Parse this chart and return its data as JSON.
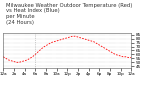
{
  "title": "Milwaukee Weather Outdoor Temperature (Red)\nvs Heat Index (Blue)\nper Minute\n(24 Hours)",
  "line_color": "#ff0000",
  "background_color": "#ffffff",
  "grid_color": "#aaaaaa",
  "yticks": [
    45,
    50,
    55,
    60,
    65,
    70,
    75,
    80,
    85
  ],
  "ylim": [
    43,
    87
  ],
  "xlim": [
    0,
    1440
  ],
  "xlabel": "",
  "ylabel": "",
  "title_fontsize": 3.8,
  "tick_fontsize": 3.0,
  "x_values": [
    0,
    30,
    60,
    90,
    120,
    150,
    180,
    210,
    240,
    270,
    300,
    330,
    360,
    390,
    420,
    450,
    480,
    510,
    540,
    570,
    600,
    630,
    660,
    690,
    720,
    750,
    780,
    810,
    840,
    870,
    900,
    930,
    960,
    990,
    1020,
    1050,
    1080,
    1110,
    1140,
    1170,
    1200,
    1230,
    1260,
    1290,
    1320,
    1350,
    1380,
    1410,
    1440
  ],
  "y_values": [
    57,
    55,
    53,
    52,
    51,
    50,
    50,
    51,
    52,
    53,
    55,
    57,
    60,
    63,
    66,
    69,
    71,
    73,
    75,
    76,
    77,
    78,
    79,
    80,
    81,
    82,
    83,
    83,
    82,
    81,
    80,
    79,
    78,
    77,
    76,
    74,
    72,
    70,
    68,
    66,
    64,
    62,
    60,
    59,
    58,
    57,
    57,
    56,
    56
  ],
  "xtick_positions": [
    0,
    120,
    240,
    360,
    480,
    600,
    720,
    840,
    960,
    1080,
    1200,
    1320,
    1440
  ],
  "xtick_labels": [
    "12a",
    "2a",
    "4a",
    "6a",
    "8a",
    "10a",
    "12p",
    "2p",
    "4p",
    "6p",
    "8p",
    "10p",
    "12a"
  ],
  "vline_x": 360,
  "vline_color": "#888888"
}
